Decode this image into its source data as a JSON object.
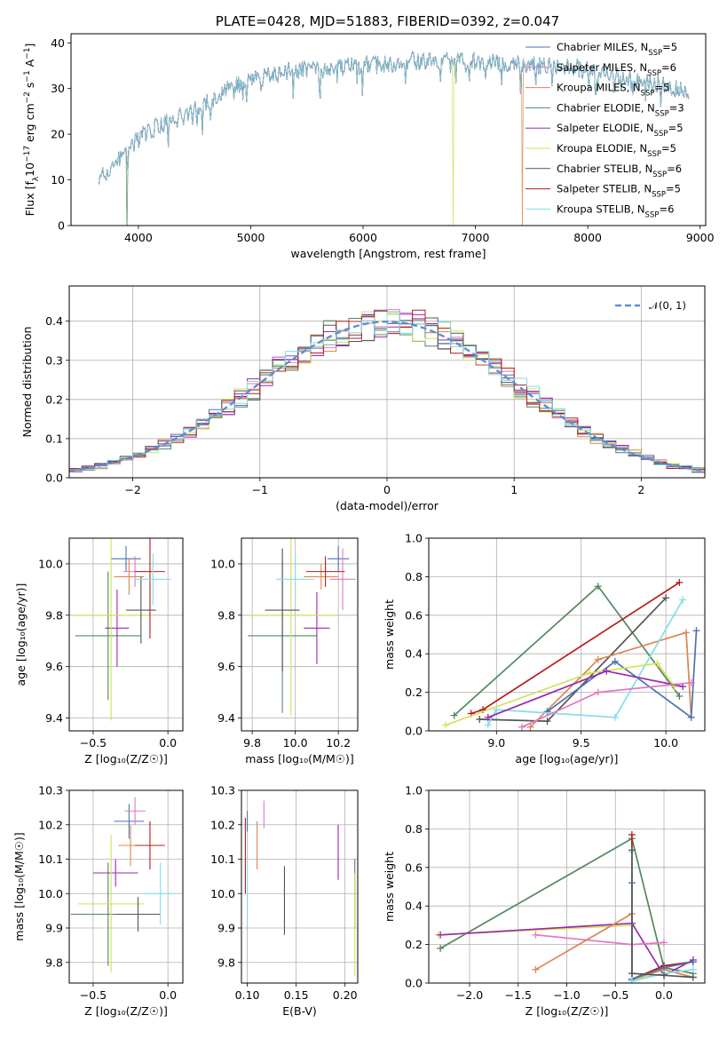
{
  "figure": {
    "title": "PLATE=0428, MJD=51883, FIBERID=0392, z=0.047"
  },
  "series": [
    {
      "name": "Chabrier MILES, N",
      "sub": "SSP",
      "n": "=5",
      "color": "#4c72b0"
    },
    {
      "name": "Salpeter MILES, N",
      "sub": "SSP",
      "n": "=6",
      "color": "#e377c2"
    },
    {
      "name": "Kroupa MILES, N",
      "sub": "SSP",
      "n": "=5",
      "color": "#dd8452"
    },
    {
      "name": "Chabrier ELODIE, N",
      "sub": "SSP",
      "n": "=3",
      "color": "#55875f"
    },
    {
      "name": "Salpeter ELODIE, N",
      "sub": "SSP",
      "n": "=5",
      "color": "#9b27b0"
    },
    {
      "name": "Kroupa ELODIE, N",
      "sub": "SSP",
      "n": "=5",
      "color": "#d4e157"
    },
    {
      "name": "Chabrier STELIB, N",
      "sub": "SSP",
      "n": "=6",
      "color": "#555555"
    },
    {
      "name": "Salpeter STELIB, N",
      "sub": "SSP",
      "n": "=5",
      "color": "#b71c1c"
    },
    {
      "name": "Kroupa STELIB, N",
      "sub": "SSP",
      "n": "=6",
      "color": "#80deea"
    }
  ],
  "chart_data": [
    {
      "id": "spectrum",
      "type": "line",
      "xlabel": "wavelength [Angstrom, rest frame]",
      "ylabel_parts": [
        "Flux [f",
        "λ",
        "10",
        "−17",
        " erg cm",
        "−2",
        " s",
        "−1",
        " A",
        "−1",
        "]"
      ],
      "xlim": [
        3400,
        9050
      ],
      "ylim": [
        0,
        42
      ],
      "xticks": [
        4000,
        5000,
        6000,
        7000,
        8000,
        9000
      ],
      "yticks": [
        0,
        10,
        20,
        30,
        40
      ],
      "x": [
        3650,
        3800,
        3900,
        4000,
        4100,
        4200,
        4300,
        4400,
        4500,
        4600,
        4700,
        4800,
        4900,
        5000,
        5200,
        5400,
        5600,
        5800,
        6000,
        6200,
        6400,
        6600,
        6800,
        7000,
        7200,
        7400,
        7600,
        7800,
        8000,
        8200,
        8400,
        8600,
        8800,
        8900
      ],
      "y": [
        10,
        14,
        16,
        19,
        21,
        22,
        23,
        24,
        26,
        27,
        28,
        30,
        31,
        32,
        33,
        34,
        34,
        35,
        35,
        35.5,
        36,
        36,
        36,
        36,
        35.5,
        35.5,
        35,
        35,
        34,
        33,
        32,
        31,
        30,
        29
      ],
      "dropouts": [
        {
          "series": 3,
          "x": 3900
        },
        {
          "series": 5,
          "x": 6800
        },
        {
          "series": 2,
          "x": 7420
        }
      ]
    },
    {
      "id": "residuals",
      "type": "histogram",
      "xlabel": "(data-model)/error",
      "ylabel": "Normed distribution",
      "xlim": [
        -2.5,
        2.5
      ],
      "ylim": [
        0,
        0.49
      ],
      "xticks": [
        -2,
        -1,
        0,
        1,
        2
      ],
      "yticks": [
        0.0,
        0.1,
        0.2,
        0.3,
        0.4
      ],
      "reference_curve": {
        "name": "𝒩(0, 1)",
        "mean": 0,
        "sd": 1,
        "color": "#5b8fd6"
      },
      "bins": 50
    },
    {
      "id": "age-vs-Z",
      "type": "errorbar",
      "xlabel": "Z [log₁₀(Z/Z☉)]",
      "ylabel": "age  [log₁₀(age/yr)]",
      "xlim": [
        -0.66,
        0.1
      ],
      "ylim": [
        9.35,
        10.1
      ],
      "xticks": [
        -0.5,
        0.0
      ],
      "yticks": [
        9.4,
        9.6,
        9.8,
        10.0
      ],
      "points": [
        {
          "s": 0,
          "x": -0.28,
          "y": 10.02,
          "xe": 0.1,
          "ye": 0.05
        },
        {
          "s": 1,
          "x": -0.22,
          "y": 9.97,
          "xe": 0.08,
          "ye": 0.06
        },
        {
          "s": 2,
          "x": -0.26,
          "y": 9.95,
          "xe": 0.1,
          "ye": 0.07
        },
        {
          "s": 3,
          "x": -0.4,
          "y": 9.72,
          "xe": 0.22,
          "ye": 0.25
        },
        {
          "s": 4,
          "x": -0.34,
          "y": 9.75,
          "xe": 0.08,
          "ye": 0.15
        },
        {
          "s": 5,
          "x": -0.38,
          "y": 9.8,
          "xe": 0.25,
          "ye": 0.41
        },
        {
          "s": 6,
          "x": -0.18,
          "y": 9.82,
          "xe": 0.1,
          "ye": 0.13
        },
        {
          "s": 7,
          "x": -0.12,
          "y": 9.97,
          "xe": 0.1,
          "ye": 0.26
        },
        {
          "s": 8,
          "x": -0.1,
          "y": 9.94,
          "xe": 0.12,
          "ye": 0.1
        }
      ]
    },
    {
      "id": "age-vs-mass",
      "type": "errorbar",
      "xlabel": "mass [log₁₀(M/M☉)]",
      "ylabel": "",
      "xlim": [
        9.75,
        10.29
      ],
      "ylim": [
        9.35,
        10.1
      ],
      "xticks": [
        9.8,
        10.0,
        10.2
      ],
      "yticks": [
        9.4,
        9.6,
        9.8,
        10.0
      ],
      "points": [
        {
          "s": 0,
          "x": 10.2,
          "y": 10.02,
          "xe": 0.05,
          "ye": 0.05
        },
        {
          "s": 1,
          "x": 10.22,
          "y": 9.94,
          "xe": 0.06,
          "ye": 0.12
        },
        {
          "s": 2,
          "x": 10.12,
          "y": 9.95,
          "xe": 0.08,
          "ye": 0.05
        },
        {
          "s": 3,
          "x": 9.94,
          "y": 9.72,
          "xe": 0.16,
          "ye": 0.3
        },
        {
          "s": 4,
          "x": 10.1,
          "y": 9.75,
          "xe": 0.06,
          "ye": 0.14
        },
        {
          "s": 5,
          "x": 9.98,
          "y": 9.8,
          "xe": 0.2,
          "ye": 0.39
        },
        {
          "s": 6,
          "x": 9.94,
          "y": 9.82,
          "xe": 0.08,
          "ye": 0.24
        },
        {
          "s": 7,
          "x": 10.14,
          "y": 9.97,
          "xe": 0.09,
          "ye": 0.06
        },
        {
          "s": 8,
          "x": 10.0,
          "y": 9.94,
          "xe": 0.09,
          "ye": 0.1
        }
      ]
    },
    {
      "id": "weight-vs-age",
      "type": "line",
      "xlabel": "age  [log₁₀(age/yr)]",
      "ylabel": "mass weight",
      "xlim": [
        8.6,
        10.23
      ],
      "ylim": [
        0,
        1
      ],
      "xticks": [
        9.0,
        9.5,
        10.0
      ],
      "yticks": [
        0.0,
        0.2,
        0.4,
        0.6,
        0.8,
        1.0
      ],
      "lines": [
        {
          "s": 3,
          "x": [
            8.75,
            9.6,
            10.08
          ],
          "y": [
            0.08,
            0.75,
            0.18
          ]
        },
        {
          "s": 7,
          "x": [
            8.85,
            8.92,
            10.08
          ],
          "y": [
            0.09,
            0.11,
            0.77
          ]
        },
        {
          "s": 6,
          "x": [
            8.9,
            9.3,
            10.0
          ],
          "y": [
            0.06,
            0.05,
            0.69
          ]
        },
        {
          "s": 2,
          "x": [
            9.2,
            9.6,
            10.12,
            10.15
          ],
          "y": [
            0.02,
            0.37,
            0.51,
            0.07
          ]
        },
        {
          "s": 0,
          "x": [
            9.3,
            9.7,
            10.15,
            10.18
          ],
          "y": [
            0.1,
            0.36,
            0.07,
            0.52
          ]
        },
        {
          "s": 8,
          "x": [
            8.95,
            9.0,
            9.7,
            10.1
          ],
          "y": [
            0.03,
            0.11,
            0.07,
            0.68
          ]
        },
        {
          "s": 5,
          "x": [
            8.7,
            9.55,
            9.95,
            10.05
          ],
          "y": [
            0.03,
            0.3,
            0.35,
            0.23
          ]
        },
        {
          "s": 4,
          "x": [
            8.95,
            9.65,
            10.1
          ],
          "y": [
            0.07,
            0.31,
            0.23
          ]
        },
        {
          "s": 1,
          "x": [
            9.15,
            9.6,
            10.15
          ],
          "y": [
            0.02,
            0.2,
            0.25
          ]
        }
      ]
    },
    {
      "id": "mass-vs-Z",
      "type": "errorbar",
      "xlabel": "Z [log₁₀(Z/Z☉)]",
      "ylabel": "mass [log₁₀(M/M☉)]",
      "xlim": [
        -0.66,
        0.1
      ],
      "ylim": [
        9.74,
        10.3
      ],
      "xticks": [
        -0.5,
        0.0
      ],
      "yticks": [
        9.8,
        9.9,
        10.0,
        10.1,
        10.2,
        10.3
      ],
      "points": [
        {
          "s": 0,
          "x": -0.26,
          "y": 10.21,
          "xe": 0.1,
          "ye": 0.05
        },
        {
          "s": 1,
          "x": -0.22,
          "y": 10.24,
          "xe": 0.07,
          "ye": 0.04
        },
        {
          "s": 2,
          "x": -0.25,
          "y": 10.14,
          "xe": 0.08,
          "ye": 0.06
        },
        {
          "s": 3,
          "x": -0.4,
          "y": 9.94,
          "xe": 0.25,
          "ye": 0.15
        },
        {
          "s": 4,
          "x": -0.35,
          "y": 10.06,
          "xe": 0.15,
          "ye": 0.04
        },
        {
          "s": 5,
          "x": -0.38,
          "y": 9.97,
          "xe": 0.22,
          "ye": 0.2
        },
        {
          "s": 6,
          "x": -0.2,
          "y": 9.94,
          "xe": 0.15,
          "ye": 0.05
        },
        {
          "s": 7,
          "x": -0.12,
          "y": 10.14,
          "xe": 0.1,
          "ye": 0.07
        },
        {
          "s": 8,
          "x": -0.05,
          "y": 10.0,
          "xe": 0.12,
          "ye": 0.09
        }
      ]
    },
    {
      "id": "mass-vs-ebv",
      "type": "errorbar",
      "xlabel": "E(B-V)",
      "ylabel": "",
      "xlim": [
        0.094,
        0.213
      ],
      "ylim": [
        9.74,
        10.3
      ],
      "xticks": [
        0.1,
        0.15,
        0.2
      ],
      "yticks": [
        9.8,
        9.9,
        10.0,
        10.1,
        10.2,
        10.3
      ],
      "points": [
        {
          "s": 0,
          "x": 0.1,
          "y": 10.21,
          "xe": 0.0,
          "ye": 0.03
        },
        {
          "s": 1,
          "x": 0.117,
          "y": 10.23,
          "xe": 0.0,
          "ye": 0.04
        },
        {
          "s": 2,
          "x": 0.11,
          "y": 10.14,
          "xe": 0.0,
          "ye": 0.07
        },
        {
          "s": 3,
          "x": 0.21,
          "y": 10.0,
          "xe": 0.0,
          "ye": 0.1
        },
        {
          "s": 4,
          "x": 0.193,
          "y": 10.12,
          "xe": 0.0,
          "ye": 0.08
        },
        {
          "s": 5,
          "x": 0.21,
          "y": 9.91,
          "xe": 0.0,
          "ye": 0.15
        },
        {
          "s": 6,
          "x": 0.138,
          "y": 9.98,
          "xe": 0.0,
          "ye": 0.1
        },
        {
          "s": 7,
          "x": 0.098,
          "y": 10.11,
          "xe": 0.0,
          "ye": 0.11
        },
        {
          "s": 8,
          "x": 0.1,
          "y": 10.0,
          "xe": 0.0,
          "ye": 0.09
        }
      ]
    },
    {
      "id": "weight-vs-Z",
      "type": "line",
      "xlabel": "Z [log₁₀(Z/Z☉)]",
      "ylabel": "mass weight",
      "xlim": [
        -2.42,
        0.42
      ],
      "ylim": [
        0,
        1
      ],
      "xticks": [
        -2.0,
        -1.5,
        -1.0,
        -0.5,
        0.0
      ],
      "yticks": [
        0.0,
        0.2,
        0.4,
        0.6,
        0.8,
        1.0
      ],
      "lines": [
        {
          "s": 3,
          "x": [
            -2.3,
            -0.33,
            0.0,
            0.3
          ],
          "y": [
            0.18,
            0.75,
            0.08,
            0.05
          ]
        },
        {
          "s": 5,
          "x": [
            -2.32,
            -0.33,
            -0.33,
            0.0
          ],
          "y": [
            0.25,
            0.3,
            0.02,
            0.05
          ]
        },
        {
          "s": 4,
          "x": [
            -2.3,
            -0.33,
            0.0,
            0.3
          ],
          "y": [
            0.25,
            0.31,
            0.04,
            0.12
          ]
        },
        {
          "s": 1,
          "x": [
            -1.32,
            -0.33,
            0.0
          ],
          "y": [
            0.25,
            0.2,
            0.21
          ]
        },
        {
          "s": 2,
          "x": [
            -1.32,
            -0.33,
            -0.33,
            0.0,
            0.3
          ],
          "y": [
            0.07,
            0.36,
            0.02,
            0.07,
            0.03
          ]
        },
        {
          "s": 7,
          "x": [
            -0.33,
            -0.33,
            0.0,
            0.3
          ],
          "y": [
            0.77,
            0.02,
            0.09,
            0.11
          ]
        },
        {
          "s": 0,
          "x": [
            -0.33,
            -0.33,
            0.0,
            0.3
          ],
          "y": [
            0.52,
            0.02,
            0.08,
            0.11
          ]
        },
        {
          "s": 8,
          "x": [
            -0.33,
            -0.33,
            0.0,
            0.3
          ],
          "y": [
            0.68,
            0.01,
            0.05,
            0.07
          ]
        },
        {
          "s": 6,
          "x": [
            -0.33,
            -0.33,
            0.0,
            0.3
          ],
          "y": [
            0.69,
            0.05,
            0.04,
            0.03
          ]
        }
      ]
    }
  ]
}
